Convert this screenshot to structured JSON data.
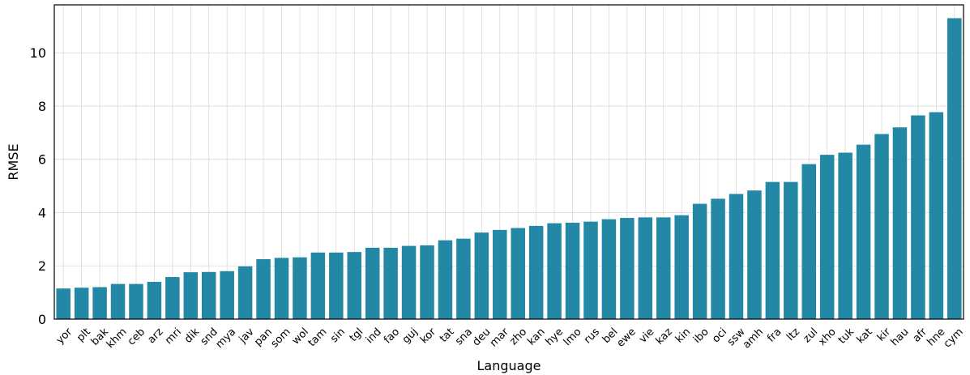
{
  "chart_data": {
    "type": "bar",
    "title": "",
    "xlabel": "Language",
    "ylabel": "RMSE",
    "ylim": [
      0,
      11.8
    ],
    "yticks": [
      0,
      2,
      4,
      6,
      8,
      10
    ],
    "grid": true,
    "bar_color": "#2387a6",
    "categories": [
      "yor",
      "plt",
      "bak",
      "khm",
      "ceb",
      "arz",
      "mri",
      "dik",
      "snd",
      "mya",
      "jav",
      "pan",
      "som",
      "wol",
      "tam",
      "sin",
      "tgl",
      "ind",
      "fao",
      "guj",
      "kor",
      "tat",
      "sna",
      "deu",
      "mar",
      "zho",
      "kan",
      "hye",
      "lmo",
      "rus",
      "bel",
      "ewe",
      "vie",
      "kaz",
      "kin",
      "ibo",
      "oci",
      "ssw",
      "amh",
      "fra",
      "ltz",
      "zul",
      "xho",
      "tuk",
      "kat",
      "kir",
      "hau",
      "afr",
      "hne",
      "cym"
    ],
    "values": [
      1.15,
      1.18,
      1.2,
      1.32,
      1.32,
      1.4,
      1.58,
      1.76,
      1.77,
      1.8,
      1.98,
      2.25,
      2.3,
      2.32,
      2.5,
      2.5,
      2.52,
      2.68,
      2.68,
      2.75,
      2.77,
      2.96,
      3.02,
      3.25,
      3.35,
      3.42,
      3.5,
      3.6,
      3.62,
      3.66,
      3.75,
      3.8,
      3.82,
      3.82,
      3.9,
      4.33,
      4.52,
      4.7,
      4.83,
      5.15,
      5.15,
      5.82,
      6.17,
      6.25,
      6.55,
      6.95,
      7.2,
      7.65,
      7.77,
      11.3
    ]
  }
}
